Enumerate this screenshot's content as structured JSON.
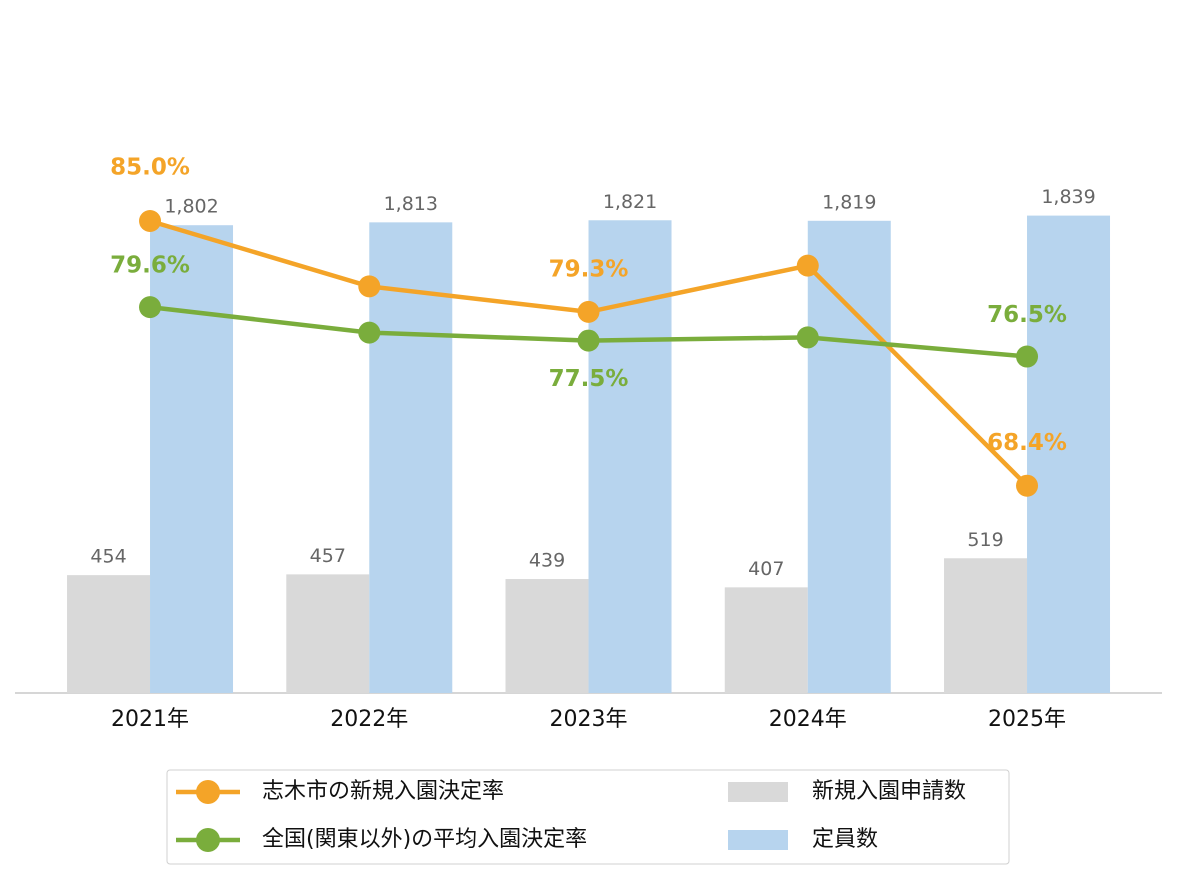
{
  "chart_data": {
    "type": "combo",
    "categories": [
      "2021年",
      "2022年",
      "2023年",
      "2024年",
      "2025年"
    ],
    "ylim": [
      0,
      2500
    ],
    "y2lim": [
      55.4,
      96.1
    ],
    "grid": false,
    "legend": "bottom",
    "series": [
      {
        "name": "志木市の新規入園決定率",
        "type": "line",
        "axis": "y2",
        "color": "#f4a428",
        "values": [
          85.0,
          80.9,
          79.3,
          82.2,
          68.4
        ],
        "value_labels": [
          "85.0%",
          null,
          "79.3%",
          null,
          "68.4%"
        ]
      },
      {
        "name": "全国(関東以外)の平均入園決定率",
        "type": "line",
        "axis": "y2",
        "color": "#7aad3c",
        "values": [
          79.6,
          78.0,
          77.5,
          77.7,
          76.5
        ],
        "value_labels": [
          "79.6%",
          null,
          "77.5%",
          null,
          "76.5%"
        ]
      },
      {
        "name": "新規入園申請数",
        "type": "bar",
        "axis": "y",
        "color": "#d9d9d9",
        "values": [
          454,
          457,
          439,
          407,
          519
        ],
        "value_labels": [
          "454",
          "457",
          "439",
          "407",
          "519"
        ]
      },
      {
        "name": "定員数",
        "type": "bar",
        "axis": "y",
        "color": "#b7d4ee",
        "values": [
          1802,
          1813,
          1821,
          1819,
          1839
        ],
        "value_labels": [
          "1,802",
          "1,813",
          "1,821",
          "1,819",
          "1,839"
        ]
      }
    ]
  }
}
